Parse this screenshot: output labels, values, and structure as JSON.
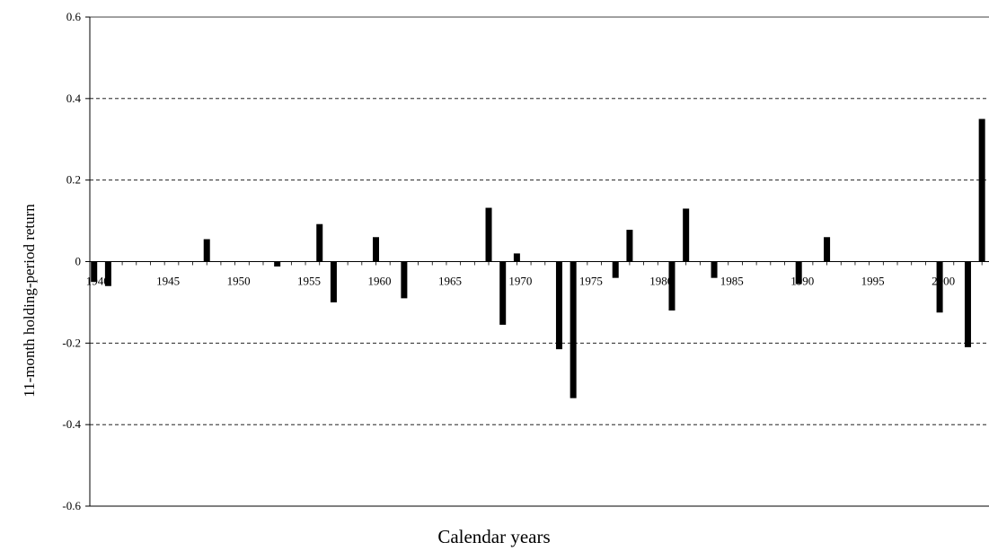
{
  "chart_data": {
    "type": "bar",
    "xlabel": "Calendar years",
    "ylabel": "11-month holding-period return",
    "ylim": [
      -0.6,
      0.6
    ],
    "xlim": [
      1939.7,
      2003.5
    ],
    "yticks": [
      -0.6,
      -0.4,
      -0.2,
      0,
      0.2,
      0.4,
      0.6
    ],
    "ytick_labels": [
      "-0.6",
      "-0.4",
      "-0.2",
      "0",
      "0.2",
      "0.4",
      "0.6"
    ],
    "xticks": [
      1940,
      1945,
      1950,
      1955,
      1960,
      1965,
      1970,
      1975,
      1980,
      1985,
      1990,
      1995,
      2000
    ],
    "xtick_labels": [
      "1940",
      "1945",
      "1950",
      "1955",
      "1960",
      "1965",
      "1970",
      "1975",
      "1980",
      "1985",
      "1990",
      "1995",
      "2000"
    ],
    "grid": "horizontal-dashed",
    "legend": "none",
    "bar_color": "#000000",
    "x": [
      1940,
      1941,
      1948,
      1953,
      1956,
      1957,
      1960,
      1962,
      1968,
      1969,
      1970,
      1973,
      1974,
      1977,
      1978,
      1981,
      1982,
      1984,
      1990,
      1992,
      2000,
      2002,
      2003
    ],
    "values": [
      -0.05,
      -0.06,
      0.055,
      -0.012,
      0.092,
      -0.1,
      0.06,
      -0.09,
      0.132,
      -0.155,
      0.02,
      -0.215,
      -0.335,
      -0.04,
      0.078,
      -0.12,
      0.13,
      -0.04,
      -0.055,
      0.06,
      -0.125,
      -0.21,
      0.35
    ]
  }
}
